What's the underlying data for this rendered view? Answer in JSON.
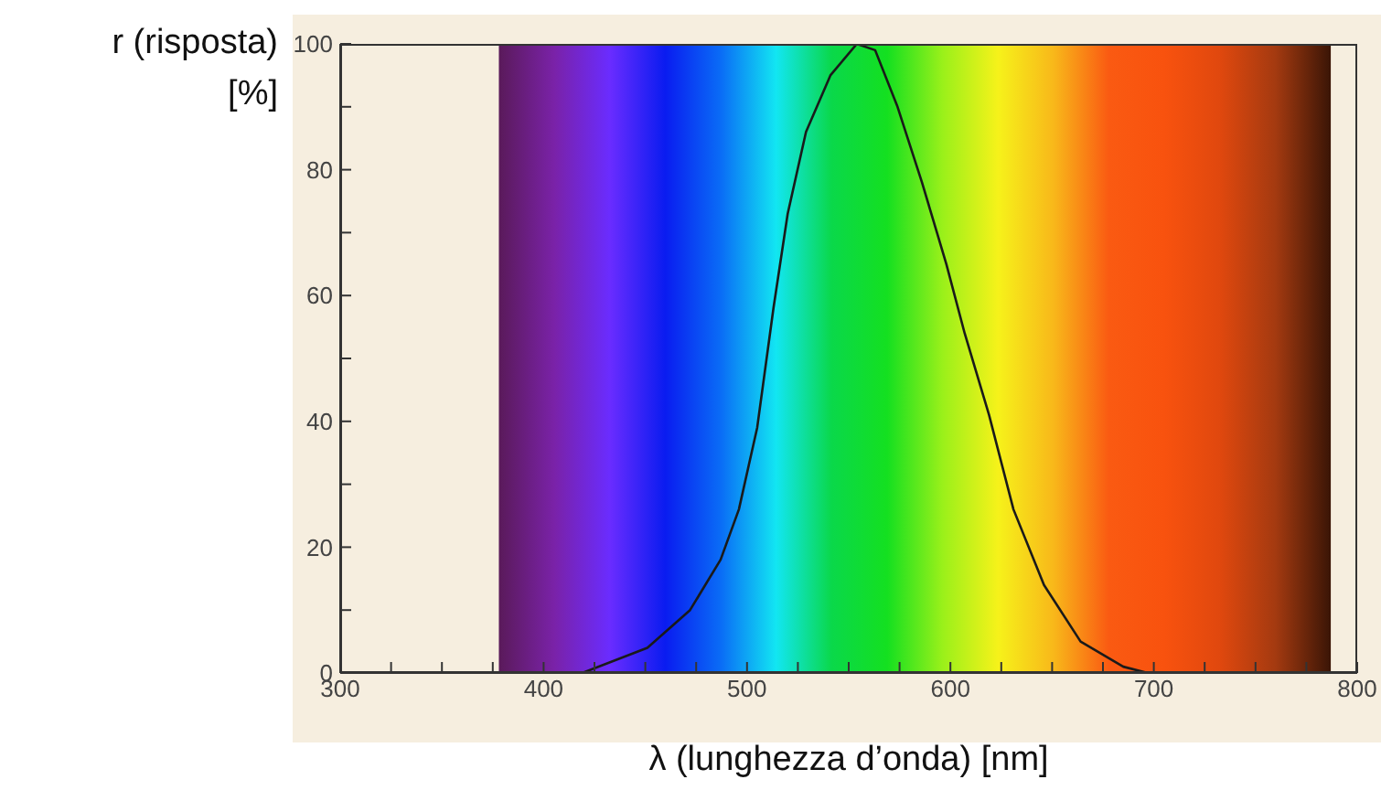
{
  "chart_data": {
    "type": "line",
    "xlabel": "λ (lunghezza d’onda) [nm]",
    "ylabel": "r (risposta) [%]",
    "series": [
      {
        "color": "#1a1a1a",
        "x": [
          419,
          451,
          472,
          487,
          496,
          505,
          513,
          520,
          529,
          541,
          554,
          563,
          574,
          586,
          598,
          607,
          619,
          631,
          646,
          664,
          685,
          697
        ],
        "values": [
          0,
          4,
          10,
          18,
          26,
          39,
          58,
          73,
          86,
          95,
          100,
          99,
          90,
          78,
          65,
          54,
          41,
          26,
          14,
          5,
          1,
          0
        ]
      }
    ],
    "xlim": [
      300,
      800
    ],
    "ylim": [
      0,
      100
    ],
    "xticks": [
      300,
      {
        "value": 325,
        "label": null
      },
      {
        "value": 350,
        "label": null
      },
      {
        "value": 375,
        "label": null
      },
      400,
      {
        "value": 425,
        "label": null
      },
      {
        "value": 450,
        "label": null
      },
      {
        "value": 475,
        "label": null
      },
      500,
      {
        "value": 525,
        "label": null
      },
      {
        "value": 550,
        "label": null
      },
      {
        "value": 575,
        "label": null
      },
      600,
      {
        "value": 625,
        "label": null
      },
      {
        "value": 650,
        "label": null
      },
      {
        "value": 675,
        "label": null
      },
      700,
      {
        "value": 725,
        "label": null
      },
      {
        "value": 750,
        "label": null
      },
      {
        "value": 775,
        "label": null
      },
      800
    ],
    "yticks": [
      0,
      {
        "value": 10,
        "label": null
      },
      20,
      {
        "value": 30,
        "label": null
      },
      40,
      {
        "value": 50,
        "label": null
      },
      60,
      {
        "value": 70,
        "label": null
      },
      80,
      {
        "value": 90,
        "label": null
      },
      100
    ],
    "bands": [
      {
        "axis": "x",
        "from": 378,
        "to": 787
      }
    ],
    "marker": "none",
    "line_style": "solid"
  }
}
